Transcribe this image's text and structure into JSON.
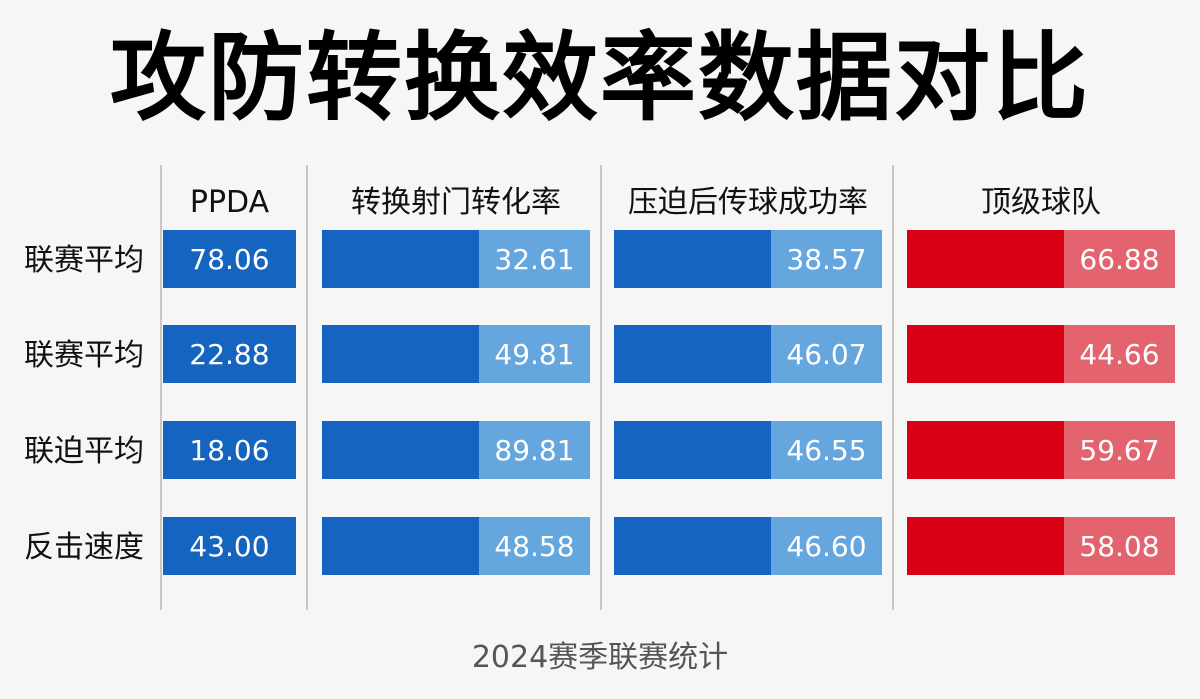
{
  "title": "攻防转换效率数据对比",
  "footer": "2024赛季联赛统计",
  "colors": {
    "blue_dark": "#1565c0",
    "blue_light": "#64a6dd",
    "red_dark": "#d70015",
    "red_light": "#e3636f",
    "divider": "#b8b8b8"
  },
  "chart_data": {
    "type": "table",
    "columns": [
      "PPDA",
      "转换射门转化率",
      "压迫后传球成功率",
      "顶级球队"
    ],
    "rows": [
      "联赛平均",
      "联赛平均",
      "联迫平均",
      "反击速度"
    ],
    "values": [
      [
        78.06,
        32.61,
        38.57,
        66.88
      ],
      [
        22.88,
        49.81,
        46.07,
        44.66
      ],
      [
        18.06,
        89.81,
        46.55,
        59.67
      ],
      [
        43.0,
        48.58,
        46.6,
        58.08
      ]
    ],
    "value_labels": [
      [
        "78.06",
        "32.61",
        "38.57",
        "66.88"
      ],
      [
        "22.88",
        "49.81",
        "46.07",
        "44.66"
      ],
      [
        "18.06",
        "89.81",
        "46.55",
        "59.67"
      ],
      [
        "43.00",
        "48.58",
        "46.60",
        "58.08"
      ]
    ],
    "column_colors": [
      "blue",
      "blue",
      "blue",
      "red"
    ]
  }
}
